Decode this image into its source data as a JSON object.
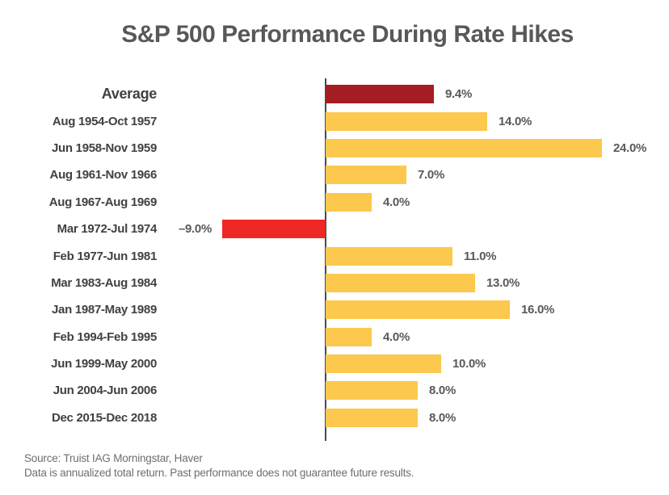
{
  "title": "S&P 500 Performance During Rate Hikes",
  "chart_data": {
    "type": "bar",
    "orientation": "horizontal",
    "title": "S&P 500 Performance During Rate Hikes",
    "xlabel": "",
    "ylabel": "",
    "x_range_pct": [
      -10,
      26
    ],
    "grid": false,
    "legend": "none",
    "value_label_position": "outside-bar-end",
    "categories": [
      "Average",
      "Aug 1954-Oct 1957",
      "Jun 1958-Nov 1959",
      "Aug 1961-Nov 1966",
      "Aug 1967-Aug 1969",
      "Mar 1972-Jul 1974",
      "Feb 1977-Jun 1981",
      "Mar 1983-Aug 1984",
      "Jan 1987-May 1989",
      "Feb 1994-Feb 1995",
      "Jun 1999-May 2000",
      "Jun 2004-Jun 2006",
      "Dec 2015-Dec 2018"
    ],
    "values": [
      9.4,
      14.0,
      24.0,
      7.0,
      4.0,
      -9.0,
      11.0,
      13.0,
      16.0,
      4.0,
      10.0,
      8.0,
      8.0
    ],
    "value_labels": [
      "9.4%",
      "14.0%",
      "24.0%",
      "7.0%",
      "4.0%",
      "–9.0%",
      "11.0%",
      "13.0%",
      "16.0%",
      "4.0%",
      "10.0%",
      "8.0%",
      "8.0%"
    ],
    "bar_roles": [
      "average",
      "positive",
      "positive",
      "positive",
      "positive",
      "negative",
      "positive",
      "positive",
      "positive",
      "positive",
      "positive",
      "positive",
      "positive"
    ]
  },
  "colors": {
    "average_bar": "#a31d22",
    "positive_bar": "#fcc84d",
    "negative_bar": "#ee2824",
    "axis_line": "#4a4a4a",
    "title_text": "#57585a",
    "category_text": "#414042",
    "value_text": "#58595b",
    "footer_text": "#6e6e6e"
  },
  "footer": {
    "source_line": "Source: Truist IAG Morningstar, Haver",
    "disclaimer_line": "Data is annualized total return. Past performance does not guarantee future results."
  }
}
